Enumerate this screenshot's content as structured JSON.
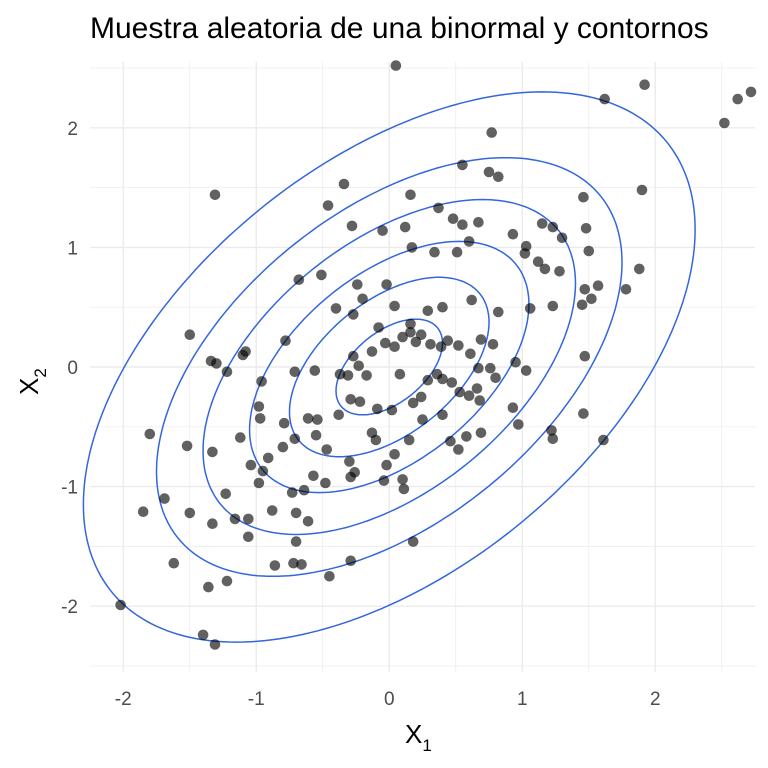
{
  "chart_data": {
    "type": "scatter",
    "title": "Muestra aleatoria de una binormal y contornos",
    "xlabel": {
      "base": "X",
      "sub": "1"
    },
    "ylabel": {
      "base": "X",
      "sub": "2"
    },
    "xlim": [
      -2.25,
      2.75
    ],
    "ylim": [
      -2.55,
      2.55
    ],
    "xticks": [
      -2,
      -1,
      0,
      1,
      2
    ],
    "yticks": [
      -2,
      -1,
      0,
      1,
      2
    ],
    "grid": true,
    "point_color": "#000000",
    "contour_color": "#3366dd",
    "gridline_color": "#ebebeb",
    "contours": {
      "center": [
        0,
        0
      ],
      "sd": [
        1,
        1
      ],
      "rho": 0.5,
      "radii": [
        0.4,
        0.75,
        1.05,
        1.4,
        1.75,
        2.3
      ]
    },
    "points": [
      [
        0.05,
        2.52
      ],
      [
        0.77,
        1.96
      ],
      [
        1.62,
        2.24
      ],
      [
        1.92,
        2.36
      ],
      [
        2.52,
        2.04
      ],
      [
        2.62,
        2.24
      ],
      [
        2.72,
        2.3
      ],
      [
        -1.31,
        1.44
      ],
      [
        -0.34,
        1.53
      ],
      [
        -0.46,
        1.35
      ],
      [
        0.16,
        1.44
      ],
      [
        0.55,
        1.69
      ],
      [
        0.75,
        1.63
      ],
      [
        0.82,
        1.59
      ],
      [
        1.46,
        1.42
      ],
      [
        1.9,
        1.48
      ],
      [
        -0.28,
        1.18
      ],
      [
        -0.05,
        1.14
      ],
      [
        0.12,
        1.17
      ],
      [
        0.37,
        1.33
      ],
      [
        0.48,
        1.24
      ],
      [
        0.55,
        1.19
      ],
      [
        0.67,
        1.21
      ],
      [
        0.93,
        1.11
      ],
      [
        1.03,
        1.01
      ],
      [
        1.15,
        1.2
      ],
      [
        1.23,
        1.17
      ],
      [
        1.3,
        1.08
      ],
      [
        1.48,
        1.16
      ],
      [
        -0.68,
        0.73
      ],
      [
        -0.51,
        0.77
      ],
      [
        -0.24,
        0.69
      ],
      [
        -0.02,
        0.69
      ],
      [
        0.17,
        1.0
      ],
      [
        0.34,
        0.96
      ],
      [
        0.51,
        0.96
      ],
      [
        0.6,
        1.05
      ],
      [
        1.02,
        0.95
      ],
      [
        1.12,
        0.88
      ],
      [
        1.17,
        0.82
      ],
      [
        1.28,
        0.8
      ],
      [
        1.5,
        0.97
      ],
      [
        -1.1,
        0.1
      ],
      [
        -1.08,
        0.13
      ],
      [
        -1.34,
        0.05
      ],
      [
        -1.5,
        0.27
      ],
      [
        -0.78,
        0.22
      ],
      [
        -0.4,
        0.49
      ],
      [
        -0.27,
        0.44
      ],
      [
        -0.2,
        0.57
      ],
      [
        -0.08,
        0.33
      ],
      [
        0.04,
        0.51
      ],
      [
        0.16,
        0.36
      ],
      [
        0.29,
        0.47
      ],
      [
        0.4,
        0.5
      ],
      [
        0.62,
        0.56
      ],
      [
        0.82,
        0.46
      ],
      [
        1.06,
        0.49
      ],
      [
        1.23,
        0.51
      ],
      [
        1.45,
        0.52
      ],
      [
        1.47,
        0.65
      ],
      [
        1.52,
        0.57
      ],
      [
        1.57,
        0.68
      ],
      [
        1.78,
        0.65
      ],
      [
        1.88,
        0.82
      ],
      [
        -1.3,
        0.03
      ],
      [
        -1.22,
        -0.04
      ],
      [
        -0.96,
        -0.12
      ],
      [
        -0.71,
        -0.04
      ],
      [
        -0.56,
        -0.03
      ],
      [
        -0.37,
        -0.06
      ],
      [
        -0.31,
        -0.07
      ],
      [
        -0.27,
        0.09
      ],
      [
        -0.23,
        0.01
      ],
      [
        -0.17,
        -0.07
      ],
      [
        -0.13,
        0.13
      ],
      [
        -0.03,
        0.2
      ],
      [
        0.04,
        0.17
      ],
      [
        0.1,
        0.25
      ],
      [
        0.16,
        0.29
      ],
      [
        0.2,
        0.21
      ],
      [
        0.24,
        0.27
      ],
      [
        0.31,
        0.19
      ],
      [
        0.39,
        0.17
      ],
      [
        0.44,
        0.22
      ],
      [
        0.52,
        0.18
      ],
      [
        0.61,
        0.11
      ],
      [
        0.69,
        0.23
      ],
      [
        0.78,
        0.19
      ],
      [
        0.67,
        -0.01
      ],
      [
        0.76,
        -0.01
      ],
      [
        0.95,
        0.04
      ],
      [
        1.03,
        -0.03
      ],
      [
        1.47,
        0.09
      ],
      [
        -0.98,
        -0.33
      ],
      [
        -0.97,
        -0.43
      ],
      [
        -0.79,
        -0.47
      ],
      [
        -0.61,
        -0.43
      ],
      [
        -0.54,
        -0.44
      ],
      [
        -0.38,
        -0.4
      ],
      [
        -0.29,
        -0.27
      ],
      [
        -0.22,
        -0.29
      ],
      [
        -0.09,
        -0.35
      ],
      [
        0.02,
        -0.36
      ],
      [
        0.08,
        -0.06
      ],
      [
        0.18,
        -0.3
      ],
      [
        0.24,
        -0.25
      ],
      [
        0.29,
        -0.11
      ],
      [
        0.36,
        -0.06
      ],
      [
        0.4,
        -0.1
      ],
      [
        0.47,
        -0.13
      ],
      [
        0.53,
        -0.21
      ],
      [
        0.6,
        -0.24
      ],
      [
        0.66,
        -0.18
      ],
      [
        0.8,
        -0.09
      ],
      [
        0.93,
        -0.34
      ],
      [
        0.68,
        -0.28
      ],
      [
        -1.8,
        -0.56
      ],
      [
        -1.52,
        -0.66
      ],
      [
        -1.33,
        -0.71
      ],
      [
        -1.12,
        -0.59
      ],
      [
        -1.04,
        -0.82
      ],
      [
        -0.95,
        -0.87
      ],
      [
        -0.91,
        -0.76
      ],
      [
        -0.8,
        -0.67
      ],
      [
        -0.71,
        -0.6
      ],
      [
        -0.55,
        -0.57
      ],
      [
        -0.47,
        -0.69
      ],
      [
        -0.3,
        -0.79
      ],
      [
        -0.26,
        -0.88
      ],
      [
        -0.13,
        -0.55
      ],
      [
        -0.1,
        -0.61
      ],
      [
        -0.02,
        -0.82
      ],
      [
        0.04,
        -0.73
      ],
      [
        0.15,
        -0.61
      ],
      [
        0.25,
        -0.44
      ],
      [
        0.4,
        -0.4
      ],
      [
        0.46,
        -0.62
      ],
      [
        0.52,
        -0.69
      ],
      [
        0.58,
        -0.58
      ],
      [
        0.69,
        -0.55
      ],
      [
        0.97,
        -0.48
      ],
      [
        1.22,
        -0.53
      ],
      [
        1.46,
        -0.39
      ],
      [
        1.61,
        -0.61
      ],
      [
        1.23,
        -0.6
      ],
      [
        -1.85,
        -1.21
      ],
      [
        -1.69,
        -1.1
      ],
      [
        -1.5,
        -1.22
      ],
      [
        -1.33,
        -1.31
      ],
      [
        -1.23,
        -1.06
      ],
      [
        -1.16,
        -1.27
      ],
      [
        -1.06,
        -1.27
      ],
      [
        -1.06,
        -1.42
      ],
      [
        -0.98,
        -0.97
      ],
      [
        -0.88,
        -1.2
      ],
      [
        -0.73,
        -1.05
      ],
      [
        -0.7,
        -1.22
      ],
      [
        -0.64,
        -1.03
      ],
      [
        -0.61,
        -1.29
      ],
      [
        -0.57,
        -0.91
      ],
      [
        -0.48,
        -0.97
      ],
      [
        -0.29,
        -0.92
      ],
      [
        -0.04,
        -0.95
      ],
      [
        0.1,
        -0.94
      ],
      [
        0.11,
        -1.02
      ],
      [
        0.18,
        -1.46
      ],
      [
        -0.7,
        -1.46
      ],
      [
        -2.02,
        -1.99
      ],
      [
        -1.62,
        -1.64
      ],
      [
        -1.36,
        -1.84
      ],
      [
        -1.22,
        -1.79
      ],
      [
        -0.86,
        -1.66
      ],
      [
        -0.72,
        -1.64
      ],
      [
        -0.45,
        -1.75
      ],
      [
        -0.29,
        -1.62
      ],
      [
        -1.4,
        -2.24
      ],
      [
        -1.31,
        -2.32
      ],
      [
        -0.66,
        -1.65
      ]
    ]
  }
}
